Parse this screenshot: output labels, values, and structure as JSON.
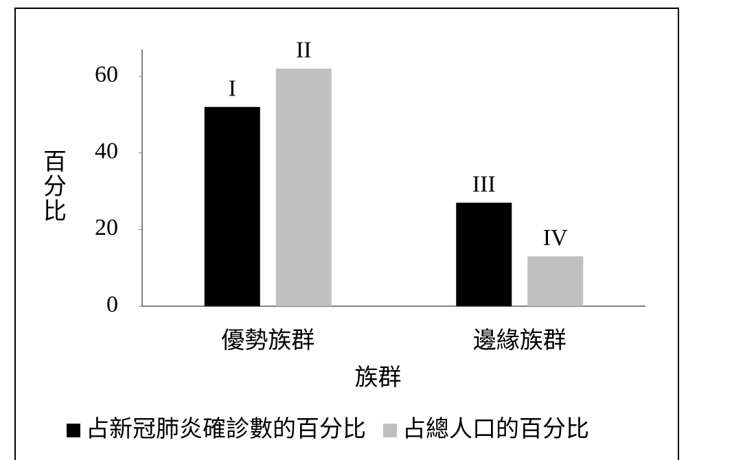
{
  "chart_data": {
    "type": "bar",
    "categories": [
      "優勢族群",
      "邊緣族群"
    ],
    "series": [
      {
        "name": "占新冠肺炎確診數的百分比",
        "color": "#000000",
        "values": [
          52,
          27
        ],
        "labels": [
          "I",
          "III"
        ]
      },
      {
        "name": "占總人口的百分比",
        "color": "#bfbfbf",
        "values": [
          62,
          13
        ],
        "labels": [
          "II",
          "IV"
        ]
      }
    ],
    "ylim": [
      0,
      67
    ],
    "yticks": [
      0,
      20,
      40,
      60
    ],
    "y_label": "百分比",
    "x_label": "族群",
    "grid": false,
    "legend": "bottom"
  }
}
